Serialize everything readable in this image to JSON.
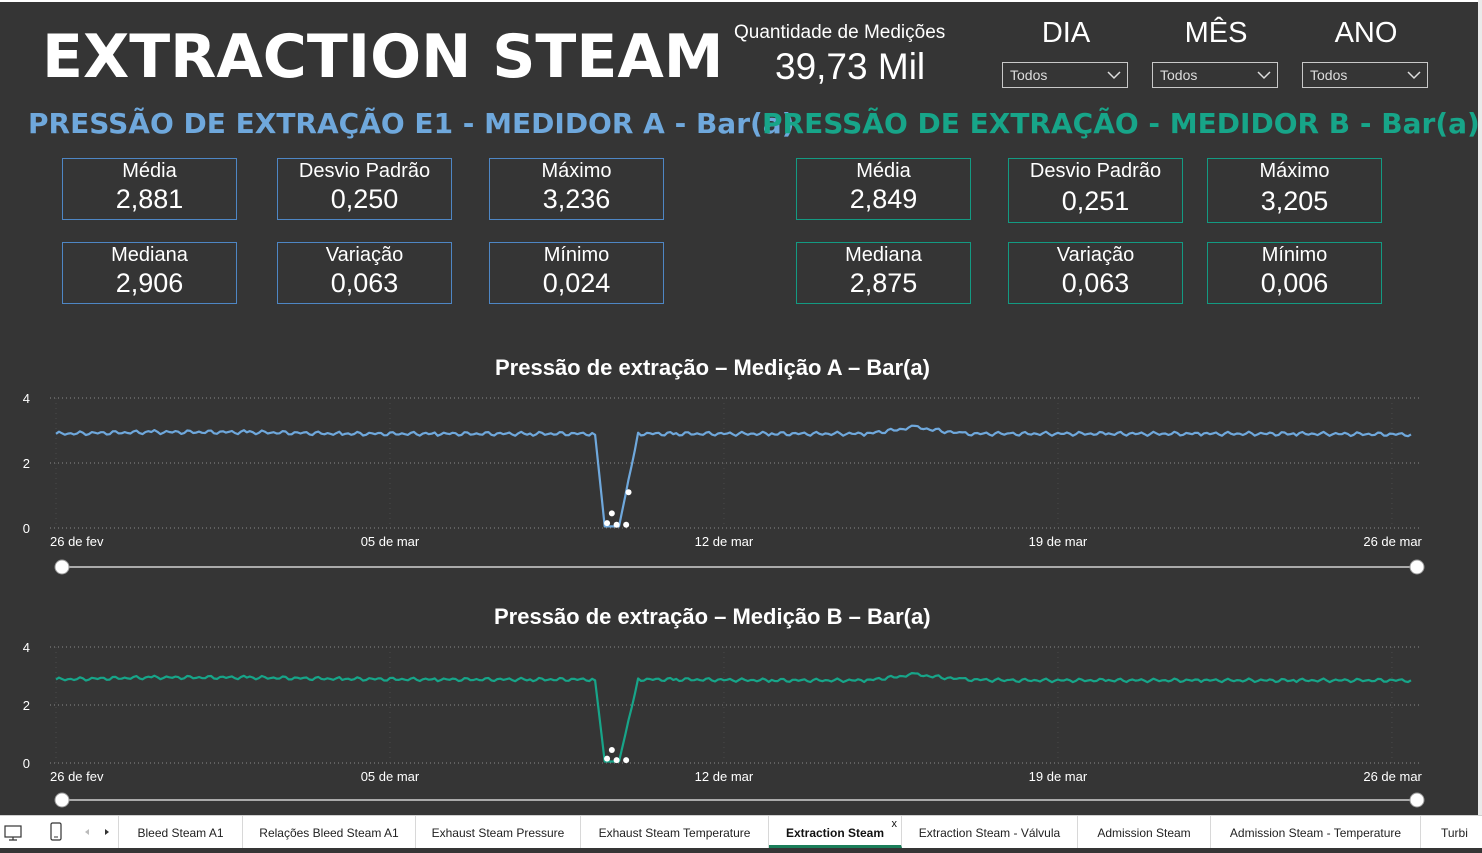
{
  "title": "EXTRACTION STEAM",
  "count": {
    "label": "Quantidade de Medições",
    "value": "39,73 Mil"
  },
  "filters": [
    {
      "label": "DIA",
      "value": "Todos"
    },
    {
      "label": "MÊS",
      "value": "Todos"
    },
    {
      "label": "ANO",
      "value": "Todos"
    }
  ],
  "section_a": {
    "title": "PRESSÃO DE EXTRAÇÃO E1 - MEDIDOR A - Bar(a)",
    "color": "#6fa8dc",
    "stats": [
      {
        "label": "Média",
        "value": "2,881"
      },
      {
        "label": "Desvio Padrão",
        "value": "0,250"
      },
      {
        "label": "Máximo",
        "value": "3,236"
      },
      {
        "label": "Mediana",
        "value": "2,906"
      },
      {
        "label": "Variação",
        "value": "0,063"
      },
      {
        "label": "Mínimo",
        "value": "0,024"
      }
    ]
  },
  "section_b": {
    "title": "PRESSÃO DE EXTRAÇÃO - MEDIDOR B - Bar(a)",
    "color": "#17a589",
    "stats": [
      {
        "label": "Média",
        "value": "2,849"
      },
      {
        "label": "Desvio Padrão",
        "value": "0,251"
      },
      {
        "label": "Máximo",
        "value": "3,205"
      },
      {
        "label": "Mediana",
        "value": "2,875"
      },
      {
        "label": "Variação",
        "value": "0,063"
      },
      {
        "label": "Mínimo",
        "value": "0,006"
      }
    ]
  },
  "chart_data": [
    {
      "type": "line",
      "title": "Pressão de extração – Medição A – Bar(a)",
      "color": "#6fa8dc",
      "ylim": [
        0,
        4
      ],
      "yticks": [
        "0",
        "2",
        "4"
      ],
      "xticks": [
        "26 de fev",
        "05 de mar",
        "12 de mar",
        "19 de mar",
        "26 de mar"
      ],
      "grid": true,
      "series": [
        {
          "x": [
            0,
            2,
            4,
            6,
            8,
            10,
            11.3,
            11.5,
            11.8,
            12.2,
            13,
            15,
            17,
            18,
            19,
            20,
            22,
            24,
            26,
            28.4
          ],
          "values": [
            2.9,
            2.95,
            2.95,
            2.9,
            2.9,
            2.9,
            2.9,
            0.05,
            0.05,
            2.9,
            2.9,
            2.9,
            2.9,
            3.1,
            2.9,
            2.9,
            2.9,
            2.9,
            2.9,
            2.88
          ]
        }
      ]
    },
    {
      "type": "line",
      "title": "Pressão de extração – Medição B – Bar(a)",
      "color": "#17a589",
      "ylim": [
        0,
        4
      ],
      "yticks": [
        "0",
        "2",
        "4"
      ],
      "xticks": [
        "26 de fev",
        "05 de mar",
        "12 de mar",
        "19 de mar",
        "26 de mar"
      ],
      "grid": true,
      "series": [
        {
          "x": [
            0,
            2,
            4,
            6,
            8,
            10,
            11.3,
            11.5,
            11.8,
            12.2,
            13,
            15,
            17,
            18,
            19,
            20,
            22,
            24,
            26,
            28.4
          ],
          "values": [
            2.88,
            2.95,
            2.95,
            2.9,
            2.88,
            2.88,
            2.88,
            0.05,
            0.05,
            2.88,
            2.88,
            2.85,
            2.85,
            3.05,
            2.88,
            2.85,
            2.85,
            2.85,
            2.85,
            2.85
          ]
        }
      ]
    }
  ],
  "tabs": [
    "Bleed Steam A1",
    "Relações Bleed Steam A1",
    "Exhaust Steam Pressure",
    "Exhaust Steam Temperature",
    "Extraction Steam",
    "Extraction Steam - Válvula",
    "Admission Steam",
    "Admission Steam - Temperature",
    "Turbi"
  ],
  "active_tab": "Extraction Steam",
  "tab_close": "x",
  "icons": [
    "desktop-icon",
    "phone-icon",
    "prev-arrow-icon",
    "next-arrow-icon"
  ]
}
